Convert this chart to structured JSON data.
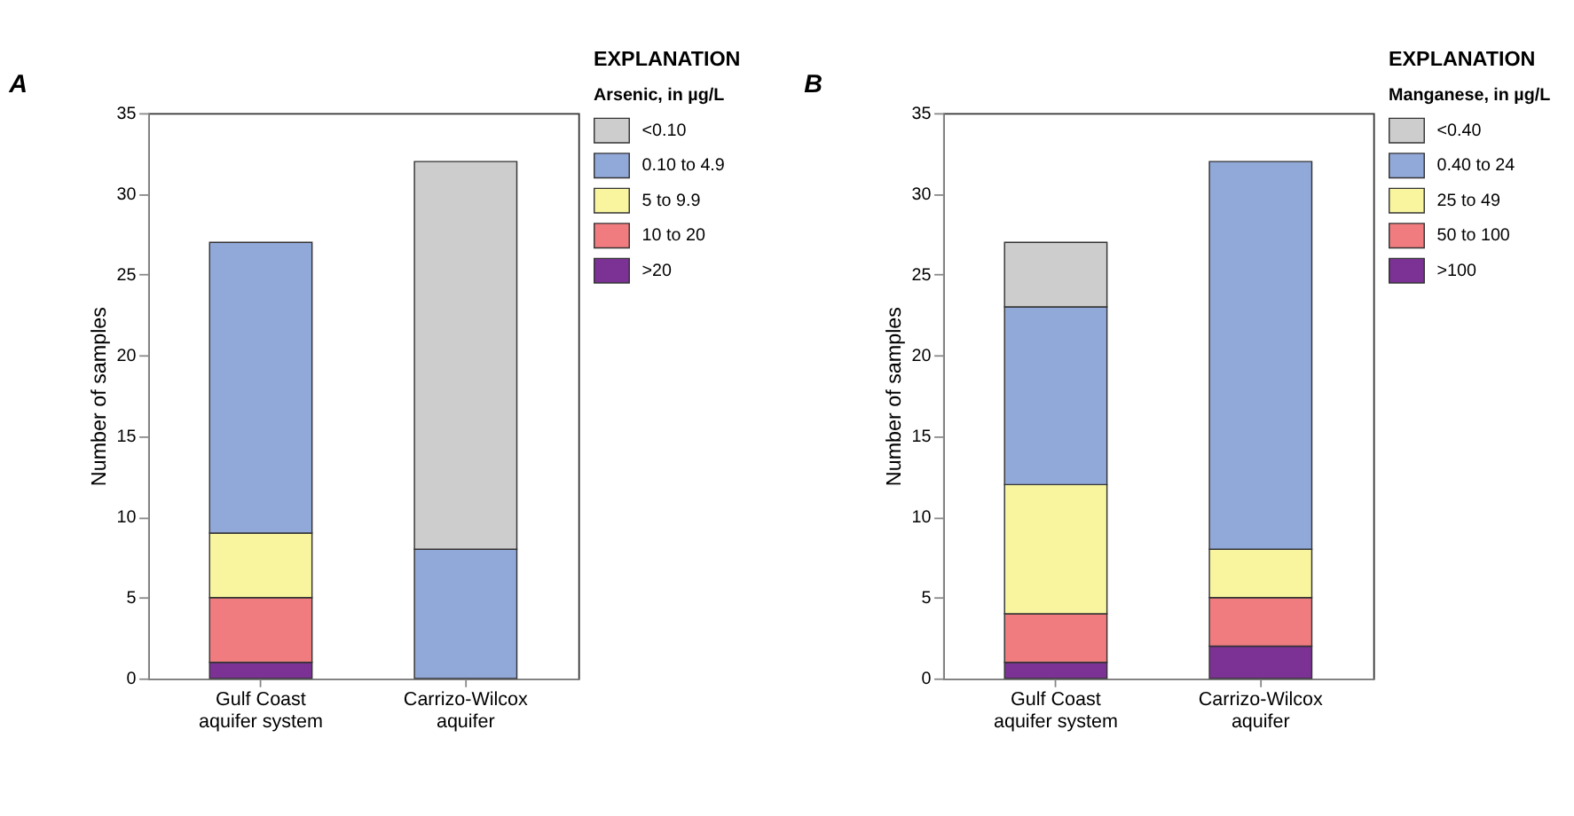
{
  "chart_data": [
    {
      "type": "bar",
      "title": "A",
      "ylabel": "Number of samples",
      "legend_title": "EXPLANATION",
      "annotations": [
        "Arsenic, in µg/L"
      ],
      "categories": [
        "Gulf Coast\naquifer system",
        "Carrizo-Wilcox\naquifer"
      ],
      "stacked": true,
      "ylim": [
        0,
        35
      ],
      "yticks": [
        0,
        5,
        10,
        15,
        20,
        25,
        30,
        35
      ],
      "grid": false,
      "legend": "right",
      "series": [
        {
          "name": ">20",
          "color": "#7b3294",
          "values": [
            1,
            0
          ]
        },
        {
          "name": "10 to 20",
          "color": "#f07c7f",
          "values": [
            4,
            0
          ]
        },
        {
          "name": "5 to 9.9",
          "color": "#f8f59e",
          "values": [
            4,
            0
          ]
        },
        {
          "name": "0.10 to 4.9",
          "color": "#91a9d9",
          "values": [
            18,
            8
          ]
        },
        {
          "name": "<0.10",
          "color": "#cdcdcd",
          "values": [
            0,
            24
          ]
        }
      ]
    },
    {
      "type": "bar",
      "title": "B",
      "ylabel": "Number of samples",
      "legend_title": "EXPLANATION",
      "annotations": [
        "Manganese, in µg/L"
      ],
      "categories": [
        "Gulf Coast\naquifer system",
        "Carrizo-Wilcox\naquifer"
      ],
      "stacked": true,
      "ylim": [
        0,
        35
      ],
      "yticks": [
        0,
        5,
        10,
        15,
        20,
        25,
        30,
        35
      ],
      "grid": false,
      "legend": "right",
      "series": [
        {
          "name": ">100",
          "color": "#7b3294",
          "values": [
            1,
            2
          ]
        },
        {
          "name": "50 to 100",
          "color": "#f07c7f",
          "values": [
            3,
            3
          ]
        },
        {
          "name": "25 to 49",
          "color": "#f8f59e",
          "values": [
            8,
            3
          ]
        },
        {
          "name": "0.40 to 24",
          "color": "#91a9d9",
          "values": [
            11,
            24
          ]
        },
        {
          "name": "<0.40",
          "color": "#cdcdcd",
          "values": [
            4,
            0
          ]
        }
      ]
    }
  ]
}
